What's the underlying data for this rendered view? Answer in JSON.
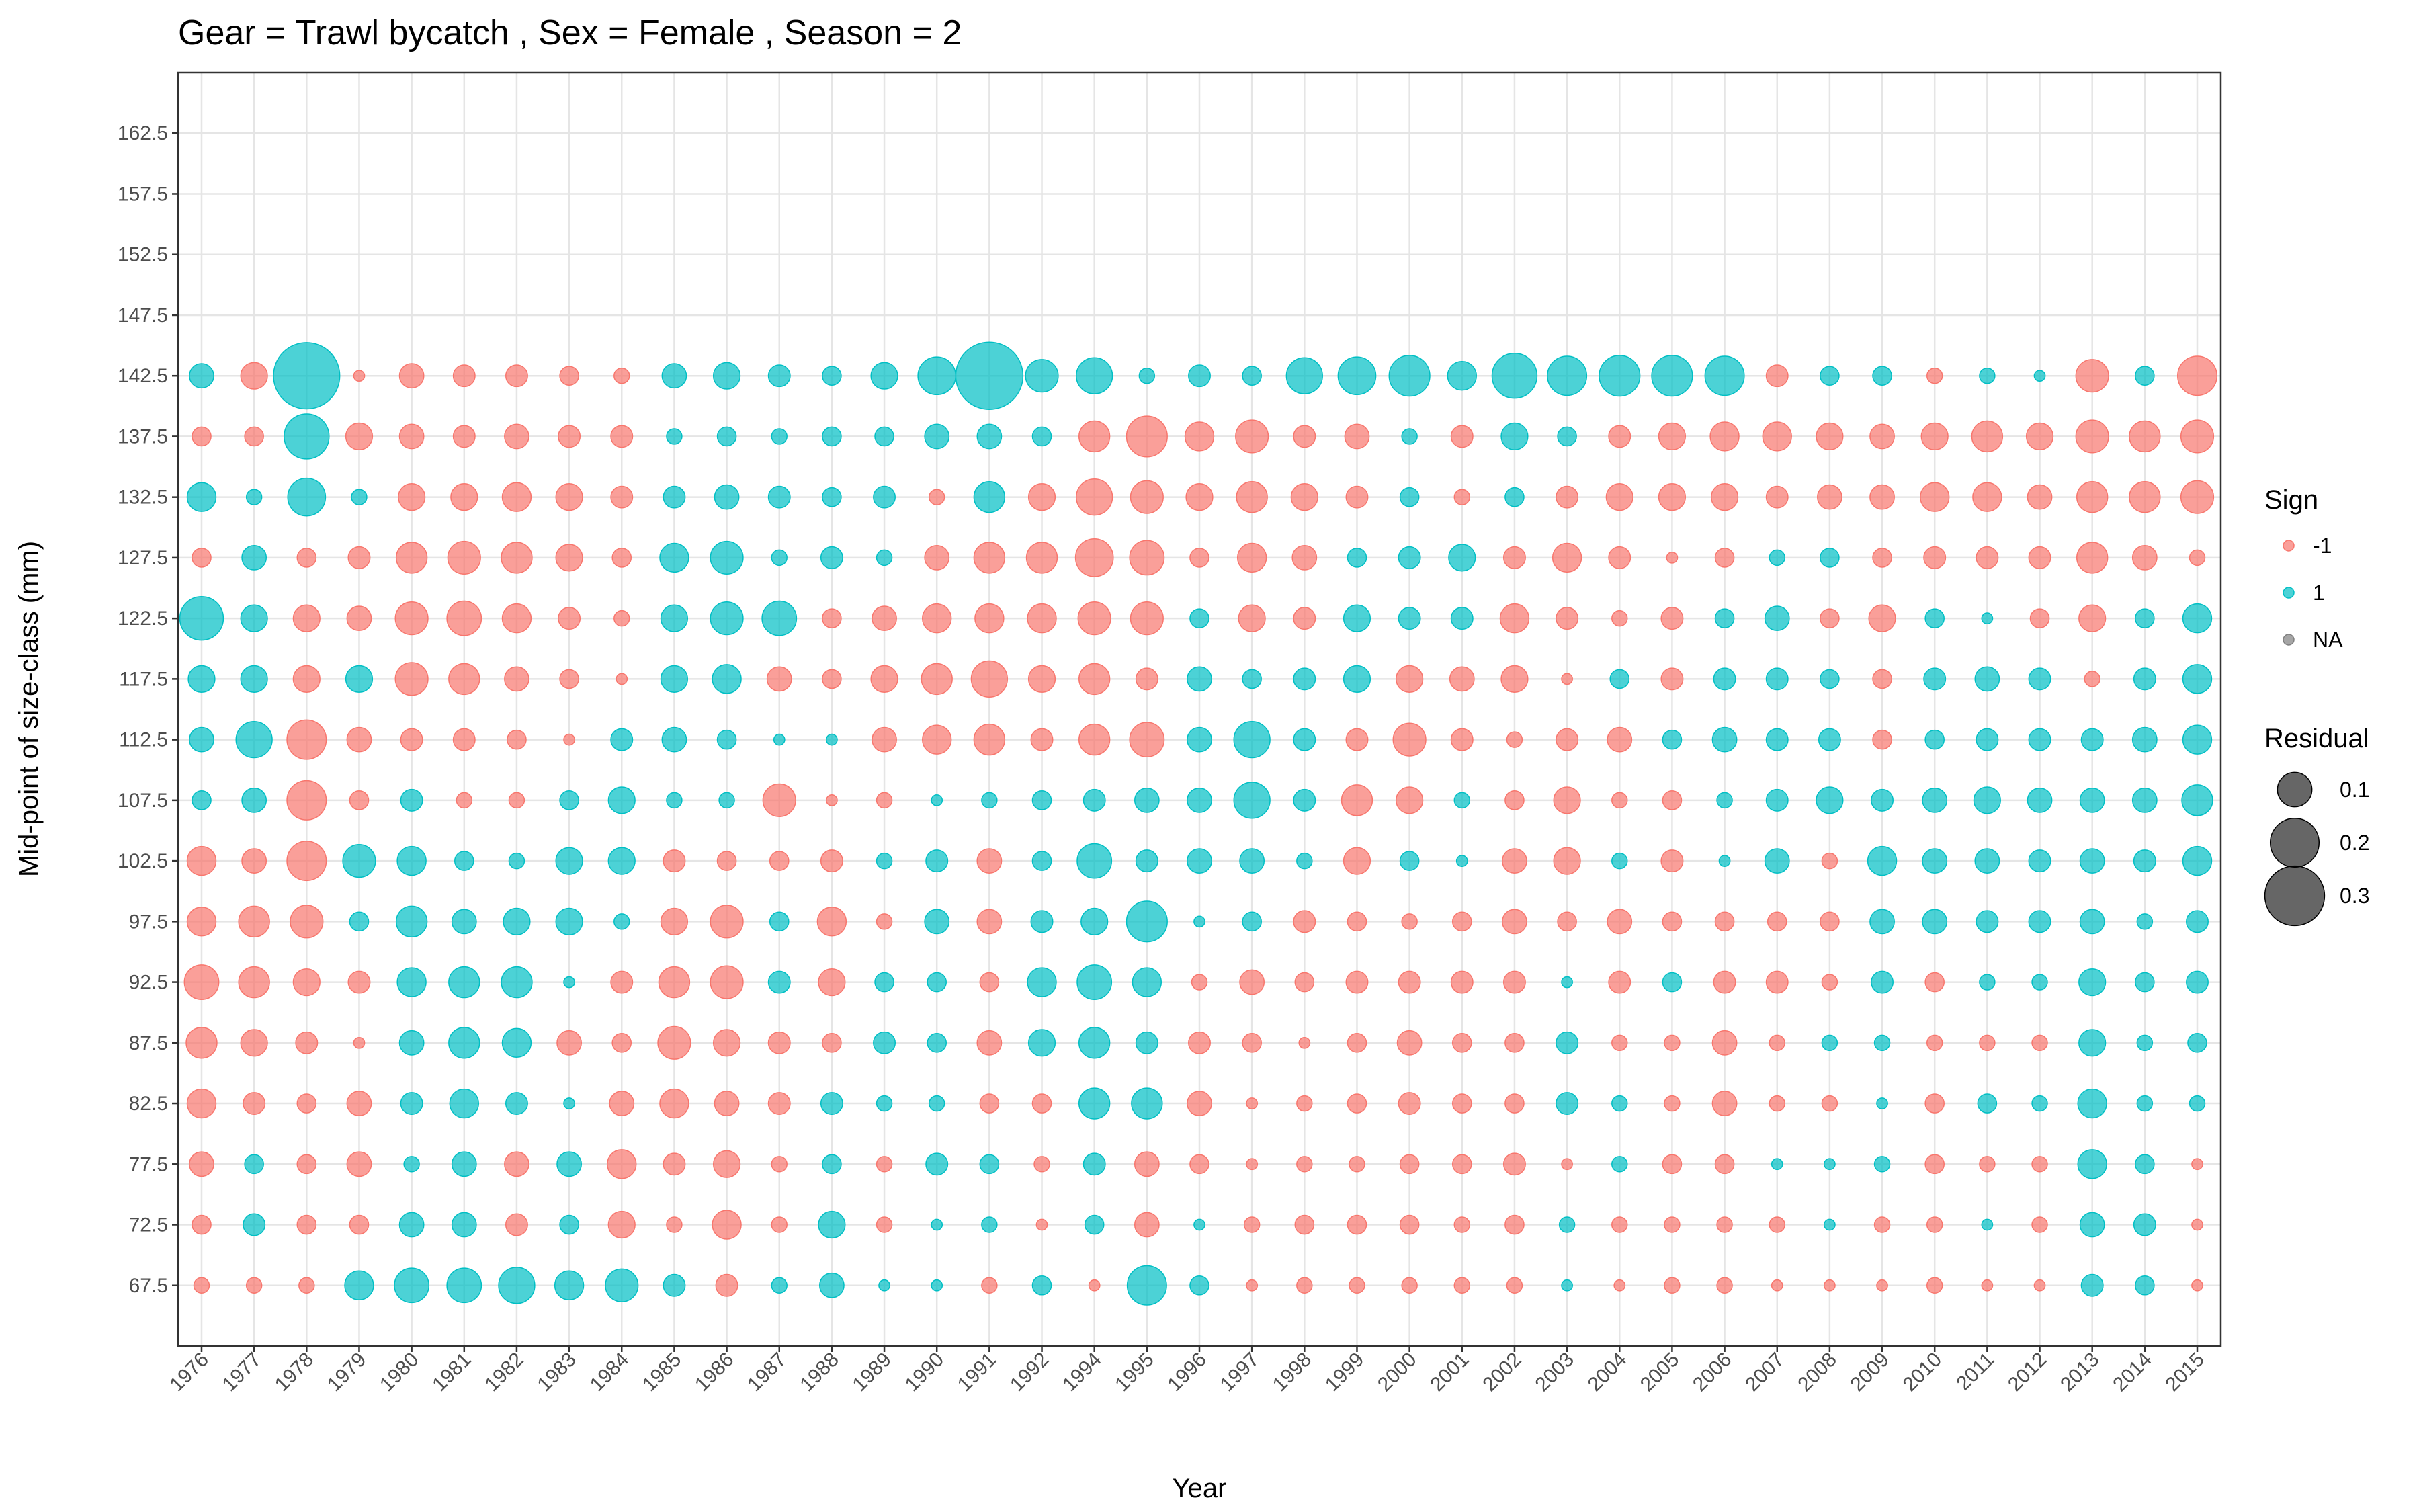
{
  "chart_data": {
    "type": "scatter",
    "title": "Gear = Trawl bycatch , Sex = Female , Season = 2",
    "xlabel": "Year",
    "ylabel": "Mid-point of size-class (mm)",
    "x_categories": [
      "1976",
      "1977",
      "1978",
      "1979",
      "1980",
      "1981",
      "1982",
      "1983",
      "1984",
      "1985",
      "1986",
      "1987",
      "1988",
      "1989",
      "1990",
      "1991",
      "1992",
      "1994",
      "1995",
      "1996",
      "1997",
      "1998",
      "1999",
      "2000",
      "2001",
      "2002",
      "2003",
      "2004",
      "2005",
      "2006",
      "2007",
      "2008",
      "2009",
      "2010",
      "2011",
      "2012",
      "2013",
      "2014",
      "2015"
    ],
    "y_ticks": [
      "67.5",
      "72.5",
      "77.5",
      "82.5",
      "87.5",
      "92.5",
      "97.5",
      "102.5",
      "107.5",
      "112.5",
      "117.5",
      "122.5",
      "127.5",
      "132.5",
      "137.5",
      "142.5",
      "147.5",
      "152.5",
      "157.5",
      "162.5"
    ],
    "ylim": [
      62.5,
      167.5
    ],
    "grid": true,
    "colors": {
      "negative": "#F8766D",
      "positive": "#00BFC4",
      "na": "#7F7F7F"
    },
    "legend_sign": {
      "title": "Sign",
      "position": "right",
      "entries": [
        {
          "label": "-1",
          "color": "#F8766D"
        },
        {
          "label": "1",
          "color": "#00BFC4"
        },
        {
          "label": "NA",
          "color": "#7F7F7F"
        }
      ]
    },
    "legend_size": {
      "title": "Residual",
      "entries": [
        {
          "label": "0.1",
          "value": 0.1
        },
        {
          "label": "0.2",
          "value": 0.2
        },
        {
          "label": "0.3",
          "value": 0.3
        }
      ]
    },
    "size_max_value": 0.38,
    "series_note_sizes": "rows are size classes 67.5 to 142.5; each row lists signed residual per year in x_categories order",
    "rows": [
      {
        "size": "142.5",
        "values": [
          0.05,
          -0.06,
          0.37,
          -0.01,
          -0.05,
          -0.04,
          -0.04,
          -0.03,
          -0.02,
          0.05,
          0.06,
          0.04,
          0.03,
          0.06,
          0.12,
          0.38,
          0.09,
          0.11,
          0.02,
          0.04,
          0.03,
          0.11,
          0.12,
          0.14,
          0.07,
          0.17,
          0.13,
          0.14,
          0.14,
          0.13,
          -0.04,
          0.03,
          0.03,
          -0.02,
          0.02,
          0.01,
          -0.09,
          0.03,
          -0.13
        ]
      },
      {
        "size": "137.5",
        "values": [
          -0.03,
          -0.03,
          0.17,
          -0.06,
          -0.05,
          -0.04,
          -0.05,
          -0.04,
          -0.04,
          0.02,
          0.03,
          0.02,
          0.03,
          0.03,
          0.05,
          0.05,
          0.03,
          -0.08,
          -0.14,
          -0.07,
          -0.09,
          -0.04,
          -0.05,
          0.02,
          -0.04,
          0.06,
          0.03,
          -0.04,
          -0.06,
          -0.07,
          -0.07,
          -0.06,
          -0.05,
          -0.06,
          -0.08,
          -0.06,
          -0.09,
          -0.08,
          -0.09
        ]
      },
      {
        "size": "132.5",
        "values": [
          0.07,
          0.02,
          0.12,
          0.02,
          -0.06,
          -0.06,
          -0.07,
          -0.06,
          -0.04,
          0.04,
          0.05,
          0.04,
          0.03,
          0.04,
          -0.02,
          0.08,
          -0.06,
          -0.11,
          -0.09,
          -0.06,
          -0.08,
          -0.06,
          -0.04,
          0.03,
          -0.02,
          0.03,
          -0.04,
          -0.06,
          -0.06,
          -0.06,
          -0.04,
          -0.05,
          -0.05,
          -0.07,
          -0.07,
          -0.05,
          -0.08,
          -0.08,
          -0.09
        ]
      },
      {
        "size": "127.5",
        "values": [
          -0.03,
          0.05,
          -0.03,
          -0.04,
          -0.08,
          -0.09,
          -0.08,
          -0.06,
          -0.03,
          0.07,
          0.09,
          0.02,
          0.04,
          0.02,
          -0.05,
          -0.08,
          -0.08,
          -0.12,
          -0.1,
          -0.03,
          -0.07,
          -0.05,
          0.03,
          0.04,
          0.06,
          -0.04,
          -0.07,
          -0.04,
          -0.01,
          -0.03,
          0.02,
          0.03,
          -0.03,
          -0.04,
          -0.04,
          -0.04,
          -0.08,
          -0.05,
          -0.02
        ]
      },
      {
        "size": "122.5",
        "values": [
          0.16,
          0.06,
          -0.06,
          -0.05,
          -0.09,
          -0.1,
          -0.07,
          -0.04,
          -0.02,
          0.06,
          0.09,
          0.1,
          -0.03,
          -0.05,
          -0.07,
          -0.07,
          -0.07,
          -0.09,
          -0.09,
          0.03,
          -0.06,
          -0.04,
          0.06,
          0.04,
          0.04,
          -0.07,
          -0.04,
          -0.02,
          -0.04,
          0.03,
          0.05,
          -0.03,
          -0.06,
          0.03,
          0.01,
          -0.03,
          -0.06,
          0.03,
          0.07
        ]
      },
      {
        "size": "117.5",
        "values": [
          0.06,
          0.06,
          -0.06,
          0.06,
          -0.09,
          -0.08,
          -0.05,
          -0.03,
          -0.01,
          0.06,
          0.07,
          -0.05,
          -0.03,
          -0.06,
          -0.08,
          -0.11,
          -0.06,
          -0.08,
          -0.04,
          0.05,
          0.03,
          0.04,
          0.06,
          -0.06,
          -0.05,
          -0.06,
          -0.01,
          0.03,
          -0.04,
          0.04,
          0.04,
          0.03,
          -0.03,
          0.04,
          0.05,
          0.04,
          -0.02,
          0.04,
          0.07
        ]
      },
      {
        "size": "112.5",
        "values": [
          0.05,
          0.11,
          -0.13,
          -0.05,
          -0.04,
          -0.04,
          -0.03,
          -0.01,
          0.04,
          0.05,
          0.03,
          0.01,
          0.01,
          -0.05,
          -0.07,
          -0.08,
          -0.04,
          -0.08,
          -0.1,
          0.05,
          0.11,
          0.04,
          -0.04,
          -0.09,
          -0.04,
          -0.02,
          -0.04,
          -0.05,
          0.03,
          0.05,
          0.04,
          0.04,
          -0.03,
          0.03,
          0.04,
          0.04,
          0.04,
          0.05,
          0.07
        ]
      },
      {
        "size": "107.5",
        "values": [
          0.03,
          0.05,
          -0.13,
          -0.03,
          0.04,
          -0.02,
          -0.02,
          0.03,
          0.06,
          0.02,
          0.02,
          -0.09,
          -0.01,
          -0.02,
          0.01,
          0.02,
          0.03,
          0.04,
          0.05,
          0.05,
          0.11,
          0.04,
          -0.08,
          -0.06,
          0.02,
          -0.03,
          -0.06,
          -0.02,
          -0.03,
          0.02,
          0.04,
          0.06,
          0.04,
          0.05,
          0.06,
          0.05,
          0.05,
          0.05,
          0.08
        ]
      },
      {
        "size": "102.5",
        "values": [
          -0.07,
          -0.05,
          -0.13,
          0.09,
          0.07,
          0.03,
          0.02,
          0.06,
          0.06,
          -0.04,
          -0.03,
          -0.03,
          -0.04,
          0.02,
          0.04,
          -0.05,
          0.03,
          0.1,
          0.04,
          0.05,
          0.05,
          0.02,
          -0.06,
          0.03,
          0.01,
          -0.05,
          -0.06,
          0.02,
          -0.04,
          0.01,
          0.05,
          -0.02,
          0.07,
          0.05,
          0.05,
          0.04,
          0.05,
          0.04,
          0.07
        ]
      },
      {
        "size": "97.5",
        "values": [
          -0.07,
          -0.08,
          -0.09,
          0.03,
          0.08,
          0.05,
          0.06,
          0.06,
          0.02,
          -0.06,
          -0.09,
          0.03,
          -0.07,
          -0.02,
          0.05,
          -0.05,
          0.04,
          0.06,
          0.14,
          0.01,
          0.03,
          -0.04,
          -0.03,
          -0.02,
          -0.03,
          -0.05,
          -0.03,
          -0.05,
          -0.03,
          -0.03,
          -0.03,
          -0.03,
          0.05,
          0.05,
          0.04,
          0.04,
          0.05,
          0.02,
          0.04
        ]
      },
      {
        "size": "92.5",
        "values": [
          -0.1,
          -0.08,
          -0.06,
          -0.04,
          0.07,
          0.08,
          0.08,
          0.01,
          -0.04,
          -0.08,
          -0.09,
          0.04,
          -0.06,
          0.03,
          0.03,
          -0.03,
          0.07,
          0.1,
          0.07,
          -0.02,
          -0.05,
          -0.03,
          -0.04,
          -0.04,
          -0.04,
          -0.04,
          0.01,
          -0.04,
          0.03,
          -0.04,
          -0.04,
          -0.02,
          0.04,
          -0.03,
          0.02,
          0.02,
          0.06,
          0.03,
          0.04
        ]
      },
      {
        "size": "87.5",
        "values": [
          -0.08,
          -0.06,
          -0.04,
          -0.01,
          0.05,
          0.08,
          0.07,
          -0.05,
          -0.03,
          -0.09,
          -0.06,
          -0.04,
          -0.03,
          0.04,
          0.03,
          -0.05,
          0.06,
          0.08,
          0.04,
          -0.04,
          -0.03,
          -0.01,
          -0.03,
          -0.05,
          -0.03,
          -0.03,
          0.04,
          -0.02,
          -0.02,
          -0.05,
          -0.02,
          0.02,
          0.02,
          -0.02,
          -0.02,
          -0.02,
          0.06,
          0.02,
          0.03
        ]
      },
      {
        "size": "82.5",
        "values": [
          -0.07,
          -0.04,
          -0.03,
          -0.05,
          0.04,
          0.07,
          0.04,
          0.01,
          -0.05,
          -0.07,
          -0.05,
          -0.04,
          0.04,
          0.02,
          0.02,
          -0.03,
          -0.03,
          0.08,
          0.08,
          -0.05,
          -0.01,
          -0.02,
          -0.03,
          -0.04,
          -0.03,
          -0.03,
          0.04,
          0.02,
          -0.02,
          -0.05,
          -0.02,
          -0.02,
          0.01,
          -0.03,
          0.03,
          0.02,
          0.07,
          0.02,
          0.02
        ]
      },
      {
        "size": "77.5",
        "values": [
          -0.05,
          0.03,
          -0.03,
          -0.05,
          0.02,
          0.05,
          -0.05,
          0.05,
          -0.07,
          -0.04,
          -0.06,
          -0.02,
          0.03,
          -0.02,
          0.04,
          0.03,
          -0.02,
          0.04,
          -0.05,
          -0.03,
          -0.01,
          -0.02,
          -0.02,
          -0.03,
          -0.03,
          -0.04,
          -0.01,
          0.02,
          -0.03,
          -0.03,
          0.01,
          0.01,
          0.02,
          -0.03,
          -0.02,
          -0.02,
          0.07,
          0.03,
          -0.01
        ]
      },
      {
        "size": "72.5",
        "values": [
          -0.03,
          0.04,
          -0.03,
          -0.03,
          0.05,
          0.05,
          -0.04,
          0.03,
          -0.06,
          -0.02,
          -0.07,
          -0.02,
          0.06,
          -0.02,
          0.01,
          0.02,
          -0.01,
          0.03,
          -0.05,
          0.01,
          -0.02,
          -0.03,
          -0.03,
          -0.03,
          -0.02,
          -0.03,
          0.02,
          -0.02,
          -0.02,
          -0.02,
          -0.02,
          0.01,
          -0.02,
          -0.02,
          0.01,
          -0.02,
          0.05,
          0.04,
          -0.01
        ]
      },
      {
        "size": "67.5",
        "values": [
          -0.02,
          -0.02,
          -0.02,
          0.07,
          0.1,
          0.1,
          0.11,
          0.07,
          0.09,
          0.04,
          -0.04,
          0.02,
          0.05,
          0.01,
          0.01,
          -0.02,
          0.03,
          -0.01,
          0.13,
          0.03,
          -0.01,
          -0.02,
          -0.02,
          -0.02,
          -0.02,
          -0.02,
          0.01,
          -0.01,
          -0.02,
          -0.02,
          -0.01,
          -0.01,
          -0.01,
          -0.02,
          -0.01,
          -0.01,
          0.04,
          0.03,
          -0.01
        ]
      }
    ]
  }
}
